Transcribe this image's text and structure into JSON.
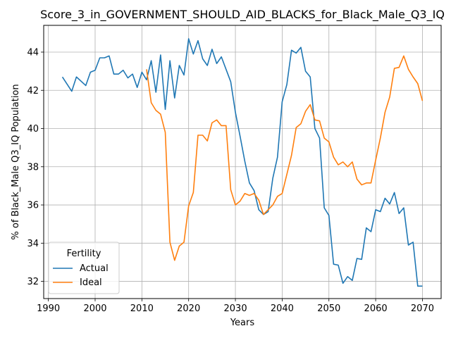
{
  "chart_data": {
    "type": "line",
    "title": "Score_3_in_GOVERNMENT_SHOULD_AID_BLACKS_for_Black_Male_Q3_IQ",
    "xlabel": "Years",
    "ylabel": "% of Black_Male Q3_IQ Population",
    "xlim": [
      1989,
      2074
    ],
    "ylim": [
      31.1,
      45.4
    ],
    "xticks": [
      1990,
      2000,
      2010,
      2020,
      2030,
      2040,
      2050,
      2060,
      2070
    ],
    "yticks": [
      32,
      34,
      36,
      38,
      40,
      42,
      44
    ],
    "grid": true,
    "legend": {
      "title": "Fertility",
      "position": "lower-left"
    },
    "series": [
      {
        "name": "Actual",
        "color": "#1f77b4",
        "x": [
          1993,
          1995,
          1996,
          1998,
          1999,
          2000,
          2001,
          2002,
          2003,
          2004,
          2005,
          2006,
          2007,
          2008,
          2009,
          2010,
          2011,
          2012,
          2013,
          2014,
          2015,
          2016,
          2017,
          2018,
          2019,
          2020,
          2021,
          2022,
          2023,
          2024,
          2025,
          2026,
          2027,
          2028,
          2029,
          2030,
          2031,
          2032,
          2033,
          2034,
          2035,
          2036,
          2037,
          2038,
          2039,
          2040,
          2041,
          2042,
          2043,
          2044,
          2045,
          2046,
          2047,
          2048,
          2049,
          2050,
          2051,
          2052,
          2053,
          2054,
          2055,
          2056,
          2057,
          2058,
          2059,
          2060,
          2061,
          2062,
          2063,
          2064,
          2065,
          2066,
          2067,
          2068,
          2069,
          2070
        ],
        "y": [
          42.7,
          41.95,
          42.7,
          42.25,
          42.95,
          43.05,
          43.7,
          43.7,
          43.8,
          42.85,
          42.85,
          43.05,
          42.65,
          42.85,
          42.15,
          42.95,
          42.55,
          43.55,
          41.9,
          43.85,
          41.0,
          43.55,
          41.6,
          43.3,
          42.8,
          44.7,
          43.9,
          44.6,
          43.65,
          43.3,
          44.15,
          43.4,
          43.75,
          43.1,
          42.45,
          40.85,
          39.6,
          38.3,
          37.15,
          36.75,
          35.75,
          35.5,
          35.65,
          37.4,
          38.5,
          41.4,
          42.3,
          44.1,
          43.95,
          44.25,
          43.0,
          42.7,
          40.0,
          39.5,
          35.85,
          35.45,
          32.9,
          32.85,
          31.9,
          32.25,
          32.05,
          33.2,
          33.15,
          34.8,
          34.6,
          35.75,
          35.65,
          36.35,
          36.05,
          36.65,
          35.55,
          35.85,
          33.9,
          34.05,
          31.75,
          31.75
        ]
      },
      {
        "name": "Ideal",
        "color": "#ff7f0e",
        "x": [
          2011,
          2012,
          2013,
          2014,
          2015,
          2016,
          2017,
          2018,
          2019,
          2020,
          2021,
          2022,
          2023,
          2024,
          2025,
          2026,
          2027,
          2028,
          2029,
          2030,
          2031,
          2032,
          2033,
          2034,
          2035,
          2036,
          2037,
          2038,
          2039,
          2040,
          2041,
          2042,
          2043,
          2044,
          2045,
          2046,
          2047,
          2048,
          2049,
          2050,
          2051,
          2052,
          2053,
          2054,
          2055,
          2056,
          2057,
          2058,
          2059,
          2060,
          2061,
          2062,
          2063,
          2064,
          2065,
          2066,
          2067,
          2068,
          2069,
          2070
        ],
        "y": [
          43.1,
          41.35,
          40.95,
          40.75,
          39.8,
          34.05,
          33.1,
          33.85,
          34.05,
          35.95,
          36.65,
          39.65,
          39.65,
          39.35,
          40.3,
          40.45,
          40.15,
          40.15,
          36.8,
          36.0,
          36.2,
          36.6,
          36.5,
          36.6,
          36.25,
          35.5,
          35.75,
          36.0,
          36.45,
          36.6,
          37.6,
          38.6,
          40.05,
          40.25,
          40.9,
          41.25,
          40.45,
          40.4,
          39.5,
          39.3,
          38.5,
          38.1,
          38.25,
          38.0,
          38.25,
          37.35,
          37.05,
          37.15,
          37.15,
          38.35,
          39.5,
          40.85,
          41.65,
          43.15,
          43.2,
          43.8,
          43.1,
          42.7,
          42.35,
          41.45
        ]
      }
    ]
  }
}
